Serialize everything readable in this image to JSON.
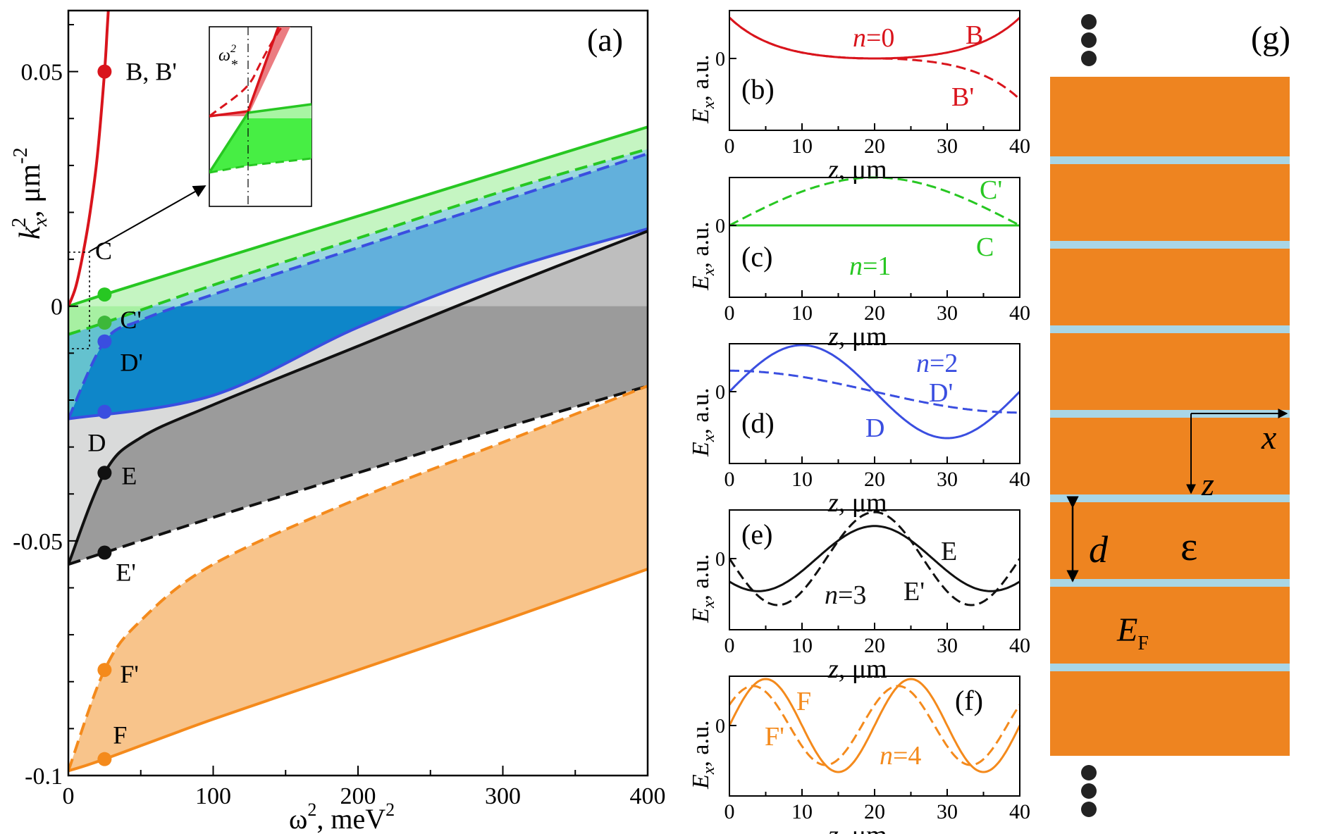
{
  "figure": {
    "panel_a": {
      "label": "(a)",
      "xlabel_main": "ω",
      "xlabel_sup": "2",
      "xlabel_rest": ", meV",
      "xlabel_sup2": "2",
      "ylabel_main": "k",
      "ylabel_sub": "x",
      "ylabel_sup": "2",
      "ylabel_rest": ", μm",
      "ylabel_sup2": "-2",
      "xticks": [
        "0",
        "100",
        "200",
        "300",
        "400"
      ],
      "yticks": [
        "-0.1",
        "-0.05",
        "0",
        "0.05"
      ],
      "xlim": [
        0,
        400
      ],
      "ylim": [
        -0.1,
        0.063
      ],
      "colors": {
        "red": "#d9141c",
        "green": "#27c722",
        "blue": "#3a4ee0",
        "black": "#111111",
        "orange": "#f48a1c"
      },
      "inset_label_main": "ω",
      "inset_label_sup": "2",
      "inset_label_sub": "*",
      "points": [
        {
          "name": "B, B'",
          "x": 25,
          "y": 0.05,
          "color": "#d9141c"
        },
        {
          "name": "C",
          "x": 25,
          "y": 0.0025,
          "color": "#27c722"
        },
        {
          "name": "C'",
          "x": 25,
          "y": -0.0035,
          "color": "#3db83a"
        },
        {
          "name": "D'",
          "x": 25,
          "y": -0.0075,
          "color": "#3a4ee0"
        },
        {
          "name": "D",
          "x": 25,
          "y": -0.0225,
          "color": "#3a4ee0"
        },
        {
          "name": "E",
          "x": 25,
          "y": -0.0355,
          "color": "#111111"
        },
        {
          "name": "E'",
          "x": 25,
          "y": -0.0525,
          "color": "#111111"
        },
        {
          "name": "F'",
          "x": 25,
          "y": -0.0775,
          "color": "#f48a1c"
        },
        {
          "name": "F",
          "x": 25,
          "y": -0.0965,
          "color": "#f48a1c"
        }
      ]
    },
    "mode_panels": {
      "xlabel_main": "z",
      "xlabel_rest": ", μm",
      "ylabel_main": "E",
      "ylabel_sub": "x",
      "ylabel_rest": ", a.u.",
      "xticks": [
        "0",
        "10",
        "20",
        "30",
        "40"
      ],
      "ytick": "0",
      "panels": [
        {
          "label": "(b)",
          "n_label": "n",
          "n_value": "=0",
          "solid": "B",
          "dashed": "B'"
        },
        {
          "label": "(c)",
          "n_label": "n",
          "n_value": "=1",
          "solid": "C",
          "dashed": "C'"
        },
        {
          "label": "(d)",
          "n_label": "n",
          "n_value": "=2",
          "solid": "D",
          "dashed": "D'"
        },
        {
          "label": "(e)",
          "n_label": "n",
          "n_value": "=3",
          "solid": "E",
          "dashed": "E'"
        },
        {
          "label": "(f)",
          "n_label": "n",
          "n_value": "=4",
          "solid": "F",
          "dashed": "F'"
        }
      ]
    },
    "panel_g": {
      "label": "(g)",
      "axis_x": "x",
      "axis_z": "z",
      "period": "d",
      "permittivity": "ε",
      "fermi_main": "E",
      "fermi_sub": "F",
      "slab_color": "#ee8420",
      "sheet_color": "#a9d6e6"
    }
  },
  "chart_data": [
    {
      "type": "area",
      "panel": "(a)",
      "xlabel": "ω², meV²",
      "ylabel": "k_x², μm⁻²",
      "xlim": [
        0,
        400
      ],
      "ylim": [
        -0.1,
        0.063
      ],
      "series": [
        {
          "name": "B, B'",
          "x": [
            0,
            5,
            10,
            15,
            20,
            25,
            27,
            30
          ],
          "y": [
            0,
            0.004,
            0.011,
            0.02,
            0.032,
            0.05,
            0.06,
            0.075
          ]
        },
        {
          "name": "C",
          "x": [
            0,
            25,
            100,
            200,
            300,
            400
          ],
          "y": [
            0.0,
            0.0025,
            0.0097,
            0.0192,
            0.0287,
            0.0382
          ]
        },
        {
          "name": "C'",
          "x": [
            0,
            25,
            100,
            200,
            300,
            400
          ],
          "y": [
            -0.006,
            -0.0035,
            0.0045,
            0.0145,
            0.0245,
            0.0335
          ]
        },
        {
          "name": "D'",
          "x": [
            0,
            25,
            50,
            100,
            200,
            300,
            400
          ],
          "y": [
            -0.024,
            -0.0075,
            -0.003,
            0.0025,
            0.0125,
            0.0225,
            0.0325
          ]
        },
        {
          "name": "D",
          "x": [
            0,
            100,
            200,
            300,
            400
          ],
          "y": [
            -0.024,
            -0.019,
            -0.0045,
            0.0075,
            0.0165
          ]
        },
        {
          "name": "E",
          "x": [
            0,
            25,
            50,
            100,
            200,
            300,
            400
          ],
          "y": [
            -0.055,
            -0.0355,
            -0.028,
            -0.021,
            -0.0085,
            0.004,
            0.016
          ]
        },
        {
          "name": "E'",
          "x": [
            0,
            25,
            100,
            200,
            300,
            400
          ],
          "y": [
            -0.055,
            -0.0525,
            -0.045,
            -0.0355,
            -0.026,
            -0.017
          ]
        },
        {
          "name": "F'",
          "x": [
            0,
            25,
            50,
            100,
            200,
            300,
            400
          ],
          "y": [
            -0.099,
            -0.0775,
            -0.067,
            -0.055,
            -0.041,
            -0.029,
            -0.017
          ]
        },
        {
          "name": "F",
          "x": [
            0,
            25,
            100,
            200,
            300,
            400
          ],
          "y": [
            -0.099,
            -0.0965,
            -0.088,
            -0.0775,
            -0.067,
            -0.056
          ]
        }
      ]
    },
    {
      "type": "line",
      "panel": "(b)",
      "xlabel": "z, μm",
      "ylabel": "E_x, a.u.",
      "xlim": [
        0,
        40
      ],
      "series": [
        {
          "name": "B",
          "x": [
            0,
            5,
            10,
            20,
            30,
            35,
            40
          ],
          "y": [
            1,
            0.3,
            0.08,
            0,
            0.08,
            0.3,
            1
          ]
        },
        {
          "name": "B'",
          "x": [
            0,
            5,
            10,
            20,
            30,
            35,
            40
          ],
          "y": [
            1,
            0.3,
            0.08,
            0,
            -0.08,
            -0.3,
            -1
          ]
        }
      ]
    },
    {
      "type": "line",
      "panel": "(c)",
      "xlabel": "z, μm",
      "ylabel": "E_x, a.u.",
      "xlim": [
        0,
        40
      ],
      "series": [
        {
          "name": "C",
          "x": [
            0,
            40
          ],
          "y": [
            0,
            0
          ]
        },
        {
          "name": "C'",
          "x": [
            0,
            10,
            20,
            30,
            40
          ],
          "y": [
            0,
            0.71,
            1,
            0.71,
            0
          ]
        }
      ]
    },
    {
      "type": "line",
      "panel": "(d)",
      "xlabel": "z, μm",
      "ylabel": "E_x, a.u.",
      "xlim": [
        0,
        40
      ],
      "series": [
        {
          "name": "D",
          "x": [
            0,
            10,
            20,
            30,
            40
          ],
          "y": [
            0,
            1,
            0,
            -1,
            0
          ]
        },
        {
          "name": "D'",
          "x": [
            0,
            10,
            20,
            30,
            40
          ],
          "y": [
            0.45,
            0.32,
            0,
            -0.32,
            -0.45
          ]
        }
      ]
    },
    {
      "type": "line",
      "panel": "(e)",
      "xlabel": "z, μm",
      "ylabel": "E_x, a.u.",
      "xlim": [
        0,
        40
      ],
      "series": [
        {
          "name": "E",
          "x": [
            0,
            4,
            20,
            36,
            40
          ],
          "y": [
            -0.55,
            -0.7,
            0.7,
            -0.7,
            -0.55
          ]
        },
        {
          "name": "E'",
          "x": [
            0,
            6.7,
            20,
            33.3,
            40
          ],
          "y": [
            0.1,
            -1,
            1,
            -1,
            0.1
          ]
        }
      ]
    },
    {
      "type": "line",
      "panel": "(f)",
      "xlabel": "z, μm",
      "ylabel": "E_x, a.u.",
      "xlim": [
        0,
        40
      ],
      "series": [
        {
          "name": "F",
          "x": [
            0,
            5,
            15,
            25,
            35,
            40
          ],
          "y": [
            0,
            1,
            -1,
            1,
            -1,
            0
          ]
        },
        {
          "name": "F'",
          "x": [
            0,
            5,
            15,
            25,
            35,
            40
          ],
          "y": [
            0.5,
            0.85,
            -0.85,
            0.85,
            -0.85,
            -0.5
          ]
        }
      ]
    }
  ]
}
